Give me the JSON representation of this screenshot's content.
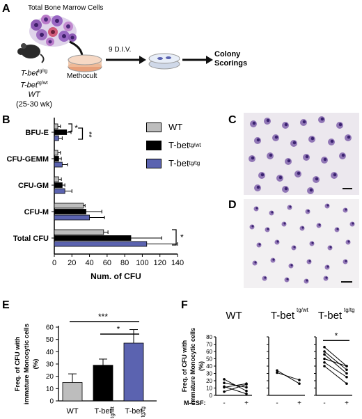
{
  "colors": {
    "wt": "#bdbdbd",
    "het": "#000000",
    "hom": "#5b63b0",
    "dish": "#e8a07a",
    "cell": "#7a5aa8",
    "cell_core": "#3a2270"
  },
  "panels": {
    "A": {
      "label": "A",
      "bone_marrow": "Total Bone Marrow Cells",
      "methocult": "Methocult",
      "div": "9 D.I.V.",
      "colony1": "Colony",
      "colony2": "Scorings",
      "geno1_base": "T-bet",
      "geno1_sup": "tg/tg",
      "geno2_base": "T-bet",
      "geno2_sup": "tg/wt",
      "geno3": "WT",
      "age": "(25-30 wk)",
      "icons": [
        "mouse-icon",
        "bone-marrow-cells-icon",
        "petri-dish-icon",
        "arrow-right-icon"
      ]
    },
    "B": {
      "label": "B",
      "legend_wt": "WT",
      "legend_het_base": "T-bet",
      "legend_het_sup": "tg/wt",
      "legend_hom_base": "T-bet",
      "legend_hom_sup": "tg/tg"
    },
    "C": {
      "label": "C"
    },
    "D": {
      "label": "D"
    },
    "E": {
      "label": "E"
    },
    "F": {
      "label": "F",
      "mcsf": "M-CSF:",
      "minus": "-",
      "plus": "+"
    }
  },
  "chart_data": [
    {
      "id": "B",
      "type": "bar",
      "orientation": "horizontal",
      "categories": [
        "BFU-E",
        "CFU-GEMM",
        "CFU-GM",
        "CFU-M",
        "Total CFU"
      ],
      "series": [
        {
          "name": "WT",
          "values": [
            4,
            4,
            5,
            33,
            56
          ],
          "errors": [
            3,
            3,
            3,
            2,
            5
          ]
        },
        {
          "name": "T-bet tg/wt",
          "values": [
            14,
            5,
            9,
            36,
            87
          ],
          "errors": [
            5,
            3,
            3,
            18,
            35
          ]
        },
        {
          "name": "T-bet tg/tg",
          "values": [
            5,
            9,
            12,
            40,
            105
          ],
          "errors": [
            4,
            6,
            8,
            17,
            35
          ]
        }
      ],
      "xlabel": "Num. of CFU",
      "xlim": [
        0,
        140
      ],
      "xticks": [
        "0",
        "20",
        "40",
        "60",
        "80",
        "100",
        "120",
        "140"
      ],
      "significance": [
        "*",
        "**",
        "*"
      ]
    },
    {
      "id": "E",
      "type": "bar",
      "categories": [
        "WT",
        "T-bet tg/wt",
        "T-bet tg/tg"
      ],
      "category_labels": [
        {
          "base": "WT",
          "sup": ""
        },
        {
          "base": "T-bet",
          "sup": "tg/wt"
        },
        {
          "base": "T-bet",
          "sup": "tg/tg"
        }
      ],
      "values": [
        15,
        29,
        47
      ],
      "errors": [
        7,
        5,
        11
      ],
      "ylabel_lines": [
        "Freq. of CFU with",
        "immature Monocytic cells",
        "(%)"
      ],
      "ylim": [
        0,
        60
      ],
      "yticks": [
        "0",
        "10",
        "20",
        "30",
        "40",
        "50",
        "60"
      ],
      "significance": [
        "***",
        "*"
      ]
    },
    {
      "id": "F",
      "type": "line",
      "x": [
        "-",
        "+"
      ],
      "ylabel_lines": [
        "Freq. of CFU with",
        "immature Monocytic cells",
        "(%)"
      ],
      "ylim": [
        0,
        80
      ],
      "yticks": [
        "0",
        "10",
        "20",
        "30",
        "40",
        "50",
        "60",
        "70",
        "80"
      ],
      "groups": [
        {
          "title_base": "WT",
          "title_sup": "",
          "pairs": [
            [
              22,
              6
            ],
            [
              17,
              11
            ],
            [
              11,
              16
            ],
            [
              5,
              15
            ],
            [
              12,
              2
            ]
          ]
        },
        {
          "title_base": "T-bet",
          "title_sup": "tg/wt",
          "pairs": [
            [
              34,
              16
            ],
            [
              31,
              21
            ]
          ]
        },
        {
          "title_base": "T-bet",
          "title_sup": "tg/tg",
          "pairs": [
            [
              66,
              40
            ],
            [
              60,
              35
            ],
            [
              56,
              30
            ],
            [
              50,
              40
            ],
            [
              45,
              25
            ],
            [
              40,
              16
            ]
          ]
        }
      ],
      "significance": [
        "*"
      ]
    }
  ]
}
